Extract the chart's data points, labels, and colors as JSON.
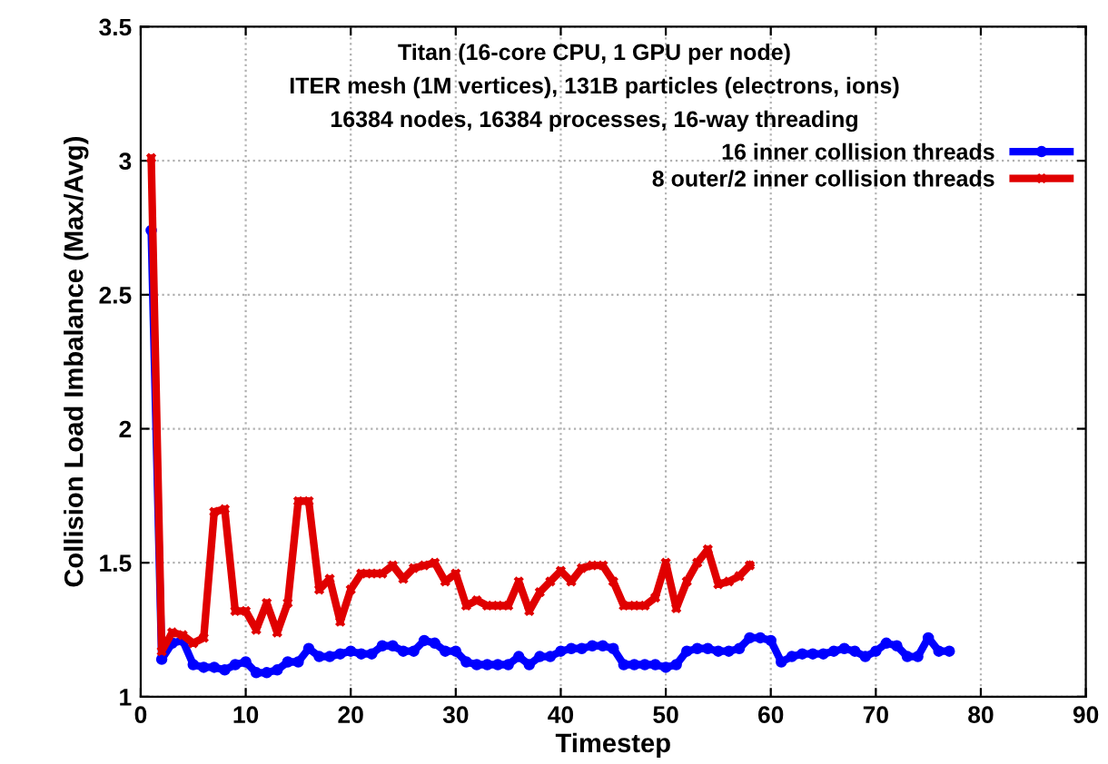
{
  "chart_data": {
    "type": "line",
    "annotations": [
      "Titan (16-core CPU, 1 GPU per node)",
      "ITER mesh (1M vertices), 131B particles (electrons, ions)",
      "16384 nodes, 16384 processes, 16-way threading"
    ],
    "xlabel": "Timestep",
    "ylabel": "Collision Load Imbalance (Max/Avg)",
    "x": [
      1,
      2,
      3,
      4,
      5,
      6,
      7,
      8,
      9,
      10,
      11,
      12,
      13,
      14,
      15,
      16,
      17,
      18,
      19,
      20,
      21,
      22,
      23,
      24,
      25,
      26,
      27,
      28,
      29,
      30,
      31,
      32,
      33,
      34,
      35,
      36,
      37,
      38,
      39,
      40,
      41,
      42,
      43,
      44,
      45,
      46,
      47,
      48,
      49,
      50,
      51,
      52,
      53,
      54,
      55,
      56,
      57,
      58,
      59,
      60,
      61,
      62,
      63,
      64,
      65,
      66,
      67,
      68,
      69,
      70,
      71,
      72,
      73,
      74,
      75,
      76,
      77
    ],
    "series": [
      {
        "name": "16 inner collision threads",
        "color": "#0000ff",
        "marker": "circle",
        "values": [
          2.74,
          1.14,
          1.2,
          1.21,
          1.12,
          1.11,
          1.11,
          1.1,
          1.12,
          1.13,
          1.09,
          1.09,
          1.1,
          1.13,
          1.13,
          1.18,
          1.15,
          1.15,
          1.16,
          1.17,
          1.16,
          1.16,
          1.19,
          1.19,
          1.17,
          1.17,
          1.21,
          1.2,
          1.17,
          1.17,
          1.13,
          1.12,
          1.12,
          1.12,
          1.12,
          1.15,
          1.12,
          1.15,
          1.15,
          1.17,
          1.18,
          1.18,
          1.19,
          1.19,
          1.18,
          1.12,
          1.12,
          1.12,
          1.12,
          1.11,
          1.12,
          1.17,
          1.18,
          1.18,
          1.17,
          1.17,
          1.18,
          1.22,
          1.22,
          1.21,
          1.13,
          1.15,
          1.16,
          1.16,
          1.16,
          1.17,
          1.18,
          1.17,
          1.15,
          1.17,
          1.2,
          1.19,
          1.15,
          1.15,
          1.22,
          1.17,
          1.17
        ]
      },
      {
        "name": "8 outer/2 inner collision threads",
        "color": "#e00000",
        "marker": "cross",
        "values": [
          3.01,
          1.17,
          1.24,
          1.23,
          1.2,
          1.22,
          1.69,
          1.7,
          1.32,
          1.32,
          1.25,
          1.35,
          1.24,
          1.35,
          1.73,
          1.73,
          1.4,
          1.44,
          1.28,
          1.4,
          1.46,
          1.46,
          1.46,
          1.49,
          1.44,
          1.48,
          1.49,
          1.5,
          1.43,
          1.46,
          1.34,
          1.36,
          1.34,
          1.34,
          1.34,
          1.43,
          1.32,
          1.39,
          1.43,
          1.47,
          1.43,
          1.48,
          1.49,
          1.49,
          1.43,
          1.34,
          1.34,
          1.34,
          1.37,
          1.5,
          1.33,
          1.43,
          1.5,
          1.55,
          1.42,
          1.43,
          1.45,
          1.49,
          null,
          null,
          null,
          null,
          null,
          null,
          null,
          null,
          null,
          null,
          null,
          null,
          null,
          null,
          null,
          null,
          null,
          null,
          null
        ]
      }
    ],
    "xlim": [
      0,
      90
    ],
    "xticks": [
      0,
      10,
      20,
      30,
      40,
      50,
      60,
      70,
      80,
      90
    ],
    "ylim": [
      1,
      3.5
    ],
    "yticks": [
      1,
      1.5,
      2,
      2.5,
      3,
      3.5
    ],
    "grid": true,
    "legend": "top right",
    "line_style": "solid"
  }
}
